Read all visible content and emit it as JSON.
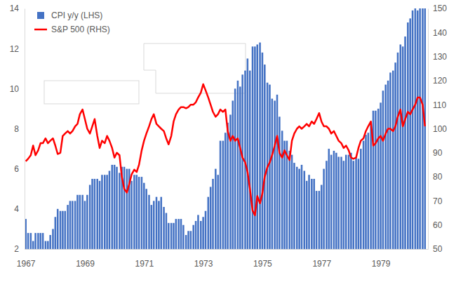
{
  "chart_data": {
    "type": "bar",
    "x": [
      1967,
      1967.08,
      1967.17,
      1967.25,
      1967.33,
      1967.42,
      1967.5,
      1967.58,
      1967.67,
      1967.75,
      1967.83,
      1967.92,
      1968,
      1968.08,
      1968.17,
      1968.25,
      1968.33,
      1968.42,
      1968.5,
      1968.58,
      1968.67,
      1968.75,
      1968.83,
      1968.92,
      1969,
      1969.08,
      1969.17,
      1969.25,
      1969.33,
      1969.42,
      1969.5,
      1969.58,
      1969.67,
      1969.75,
      1969.83,
      1969.92,
      1970,
      1970.08,
      1970.17,
      1970.25,
      1970.33,
      1970.42,
      1970.5,
      1970.58,
      1970.67,
      1970.75,
      1970.83,
      1970.92,
      1971,
      1971.08,
      1971.17,
      1971.25,
      1971.33,
      1971.42,
      1971.5,
      1971.58,
      1971.67,
      1971.75,
      1971.83,
      1971.92,
      1972,
      1972.08,
      1972.17,
      1972.25,
      1972.33,
      1972.42,
      1972.5,
      1972.58,
      1972.67,
      1972.75,
      1972.83,
      1972.92,
      1973,
      1973.08,
      1973.17,
      1973.25,
      1973.33,
      1973.42,
      1973.5,
      1973.58,
      1973.67,
      1973.75,
      1973.83,
      1973.92,
      1974,
      1974.08,
      1974.17,
      1974.25,
      1974.33,
      1974.42,
      1974.5,
      1974.58,
      1974.67,
      1974.75,
      1974.83,
      1974.92,
      1975,
      1975.08,
      1975.17,
      1975.25,
      1975.33,
      1975.42,
      1975.5,
      1975.58,
      1975.67,
      1975.75,
      1975.83,
      1975.92,
      1976,
      1976.08,
      1976.17,
      1976.25,
      1976.33,
      1976.42,
      1976.5,
      1976.58,
      1976.67,
      1976.75,
      1976.83,
      1976.92,
      1977,
      1977.08,
      1977.17,
      1977.25,
      1977.33,
      1977.42,
      1977.5,
      1977.58,
      1977.67,
      1977.75,
      1977.83,
      1977.92,
      1978,
      1978.08,
      1978.17,
      1978.25,
      1978.33,
      1978.42,
      1978.5,
      1978.58,
      1978.67,
      1978.75,
      1978.83,
      1978.92,
      1979,
      1979.08,
      1979.17,
      1979.25,
      1979.33,
      1979.42,
      1979.5,
      1979.58,
      1979.67,
      1979.75,
      1979.83,
      1979.92,
      1980,
      1980.08,
      1980.17,
      1980.25,
      1980.33,
      1980.42,
      1980.5
    ],
    "xlim": [
      1966.96,
      1980.6
    ],
    "xticks": [
      1967,
      1969,
      1971,
      1973,
      1975,
      1977,
      1979
    ],
    "ylim": [
      2,
      14
    ],
    "yticks": [
      2,
      4,
      6,
      8,
      10,
      12,
      14
    ],
    "y2lim": [
      50,
      150
    ],
    "y2ticks": [
      50,
      60,
      70,
      80,
      90,
      100,
      110,
      120,
      130,
      140,
      150
    ],
    "grid": false,
    "legend": "upper left",
    "series": [
      {
        "name": "CPI y/y (LHS)",
        "type": "bar",
        "color": "#4472c4",
        "values": [
          3.5,
          2.8,
          2.8,
          2.4,
          2.8,
          2.8,
          2.8,
          2.8,
          2.4,
          2.4,
          2.7,
          3.0,
          3.6,
          4.0,
          3.9,
          3.9,
          3.9,
          4.2,
          4.4,
          4.4,
          4.4,
          4.7,
          4.7,
          4.7,
          4.4,
          4.7,
          5.2,
          5.5,
          5.5,
          5.5,
          5.4,
          5.7,
          5.7,
          5.7,
          5.9,
          6.2,
          6.2,
          6.1,
          5.8,
          6.1,
          6.1,
          6.0,
          6.0,
          5.4,
          5.7,
          5.7,
          5.6,
          5.6,
          5.3,
          5.0,
          4.7,
          4.2,
          4.4,
          4.6,
          4.4,
          4.6,
          4.1,
          3.8,
          3.3,
          3.3,
          3.3,
          3.5,
          3.5,
          3.5,
          3.2,
          2.7,
          2.9,
          2.9,
          3.2,
          3.4,
          3.7,
          3.4,
          3.6,
          3.9,
          4.6,
          5.1,
          5.5,
          6.0,
          5.7,
          7.4,
          7.4,
          7.8,
          8.3,
          8.7,
          9.4,
          10.0,
          10.4,
          10.1,
          10.7,
          10.9,
          11.5,
          10.9,
          12.1,
          12.1,
          12.2,
          12.3,
          11.8,
          11.2,
          10.3,
          10.2,
          9.5,
          9.4,
          9.7,
          8.6,
          7.9,
          7.4,
          7.4,
          6.9,
          6.7,
          6.3,
          6.1,
          6.0,
          6.2,
          5.9,
          5.4,
          5.7,
          5.5,
          5.5,
          4.9,
          4.9,
          5.2,
          6.0,
          6.4,
          7.0,
          6.7,
          6.9,
          6.8,
          6.6,
          6.6,
          6.4,
          6.7,
          6.7,
          6.8,
          6.4,
          6.6,
          6.5,
          7.0,
          7.4,
          7.7,
          7.8,
          8.3,
          8.9,
          8.9,
          9.0,
          9.3,
          9.9,
          10.2,
          10.4,
          10.8,
          10.9,
          11.3,
          11.8,
          12.2,
          12.1,
          12.6,
          13.3,
          13.5,
          13.9,
          14.0,
          13.9,
          14.0,
          14.0,
          14.0
        ]
      },
      {
        "name": "S&P 500 (RHS)",
        "type": "line",
        "axis": "y2",
        "color": "#ff0000",
        "values": [
          86.5,
          87.5,
          89,
          93,
          89,
          91,
          94,
          94,
          96,
          94,
          95,
          96,
          93,
          89.5,
          90,
          97,
          98,
          99,
          98,
          99,
          101,
          102,
          106,
          108,
          104,
          100,
          98,
          101,
          104,
          97,
          92,
          95,
          94,
          97,
          95,
          92,
          88,
          90,
          89,
          80,
          75,
          73.5,
          77,
          81,
          83,
          82,
          85,
          91,
          95,
          98,
          101,
          104,
          106,
          102,
          101,
          100,
          99,
          96,
          93.5,
          97,
          103,
          106,
          108,
          109,
          109,
          108.5,
          109,
          110,
          110,
          111,
          113,
          115,
          118.5,
          116,
          113,
          110,
          107,
          105,
          106,
          108,
          107,
          108,
          99,
          95,
          97,
          95,
          96,
          92,
          88,
          86,
          82,
          75,
          66,
          64,
          72,
          69,
          73,
          80,
          84,
          86,
          89,
          93,
          97,
          90,
          88,
          91,
          89,
          87,
          95,
          98,
          100,
          101,
          100,
          101,
          102,
          101,
          103,
          102,
          104,
          106.5,
          103,
          101,
          101,
          100,
          98,
          99,
          97,
          95,
          94,
          92,
          93,
          91,
          88,
          87.5,
          88,
          92,
          95,
          96,
          99,
          101,
          103,
          93,
          94,
          96,
          97,
          95,
          98,
          100,
          100,
          99,
          101,
          105,
          108,
          101,
          104,
          107,
          106,
          108,
          110,
          113,
          113,
          110,
          101
        ]
      }
    ]
  }
}
